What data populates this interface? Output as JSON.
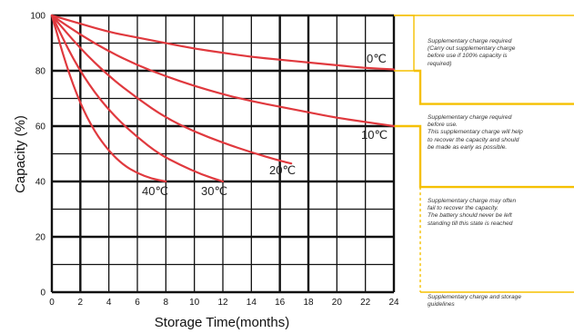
{
  "chart_data": {
    "type": "line",
    "xlabel": "Storage Time(months)",
    "ylabel": "Capacity (%)",
    "xlim": [
      0,
      24
    ],
    "ylim": [
      0,
      100
    ],
    "xticks": [
      "0",
      "2",
      "4",
      "6",
      "8",
      "10",
      "12",
      "14",
      "16",
      "18",
      "20",
      "22",
      "24"
    ],
    "yticks": [
      "0",
      "20",
      "40",
      "60",
      "80",
      "100"
    ],
    "grid": true,
    "series": [
      {
        "name": "0℃",
        "points": [
          [
            0,
            100
          ],
          [
            2,
            97
          ],
          [
            4,
            94
          ],
          [
            6,
            92
          ],
          [
            8,
            90
          ],
          [
            10,
            88
          ],
          [
            12,
            86.5
          ],
          [
            14,
            85
          ],
          [
            16,
            84
          ],
          [
            18,
            83
          ],
          [
            20,
            82
          ],
          [
            22,
            81
          ],
          [
            24,
            80.5
          ]
        ]
      },
      {
        "name": "10℃",
        "points": [
          [
            0,
            100
          ],
          [
            2,
            93
          ],
          [
            4,
            87
          ],
          [
            6,
            82
          ],
          [
            8,
            78
          ],
          [
            10,
            74.5
          ],
          [
            12,
            71.5
          ],
          [
            14,
            69
          ],
          [
            16,
            67
          ],
          [
            18,
            65
          ],
          [
            20,
            63
          ],
          [
            22,
            61.5
          ],
          [
            24,
            60
          ]
        ]
      },
      {
        "name": "20℃",
        "points": [
          [
            0,
            100
          ],
          [
            2,
            88
          ],
          [
            4,
            78
          ],
          [
            6,
            70
          ],
          [
            8,
            63
          ],
          [
            10,
            58
          ],
          [
            12,
            54
          ],
          [
            14,
            50.5
          ],
          [
            16,
            47.5
          ],
          [
            16.8,
            46.5
          ]
        ]
      },
      {
        "name": "40℃",
        "points": [
          [
            0,
            100
          ],
          [
            1,
            82
          ],
          [
            2,
            68
          ],
          [
            3,
            58
          ],
          [
            4,
            51
          ],
          [
            5,
            46
          ],
          [
            6,
            43
          ],
          [
            7,
            41
          ],
          [
            8,
            40
          ]
        ]
      },
      {
        "name": "30℃",
        "points": [
          [
            0,
            100
          ],
          [
            1.5,
            84
          ],
          [
            3,
            72
          ],
          [
            4.5,
            63
          ],
          [
            6,
            56
          ],
          [
            7.5,
            50
          ],
          [
            9,
            46
          ],
          [
            10.5,
            42.5
          ],
          [
            12,
            40
          ]
        ]
      }
    ],
    "annotations": [
      "Supplementary charge required\n(Carry out supplementary charge\nbefore use if 100% capacity is\nrequired)",
      "Supplementary charge required\nbefore use.\nThis supplementary charge will help\nto recover the capacity and should\nbe made  as early as possible.",
      "Supplementary charge may often\nfail to recover the capacity.\nThe battery should never be left\nstanding till this state is reached",
      "Supplementary charge and storage\nguidelines"
    ],
    "colors": {
      "curves": "#e0393e",
      "guides": "#f5c000",
      "grid": "#111111"
    }
  }
}
